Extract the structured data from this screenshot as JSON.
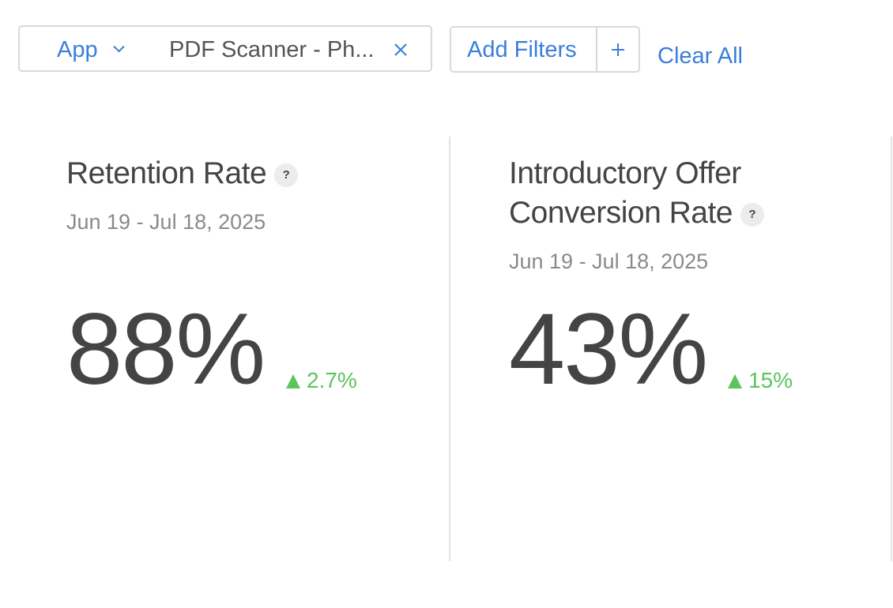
{
  "filters": {
    "type_label": "App",
    "value": "PDF Scanner - Ph...",
    "add_filters_label": "Add Filters",
    "clear_all_label": "Clear All"
  },
  "icons": {
    "dropdown": "chevron-down-icon",
    "remove": "close-icon",
    "add": "plus-icon",
    "help": "question-icon",
    "trend": "triangle-up-icon"
  },
  "metrics": [
    {
      "title": "Retention Rate",
      "help": "?",
      "date_range": "Jun 19 - Jul 18, 2025",
      "value": "88%",
      "change": "2.7%",
      "trend": "up"
    },
    {
      "title_line1": "Introductory Offer",
      "title_line2": "Conversion Rate",
      "help": "?",
      "date_range": "Jun 19 - Jul 18, 2025",
      "value": "43%",
      "change": "15%",
      "trend": "up"
    }
  ],
  "colors": {
    "accent": "#3a7fd9",
    "positive": "#5bc45b",
    "text": "#444444",
    "muted": "#8a8a8a",
    "border": "#d9d9d9"
  }
}
